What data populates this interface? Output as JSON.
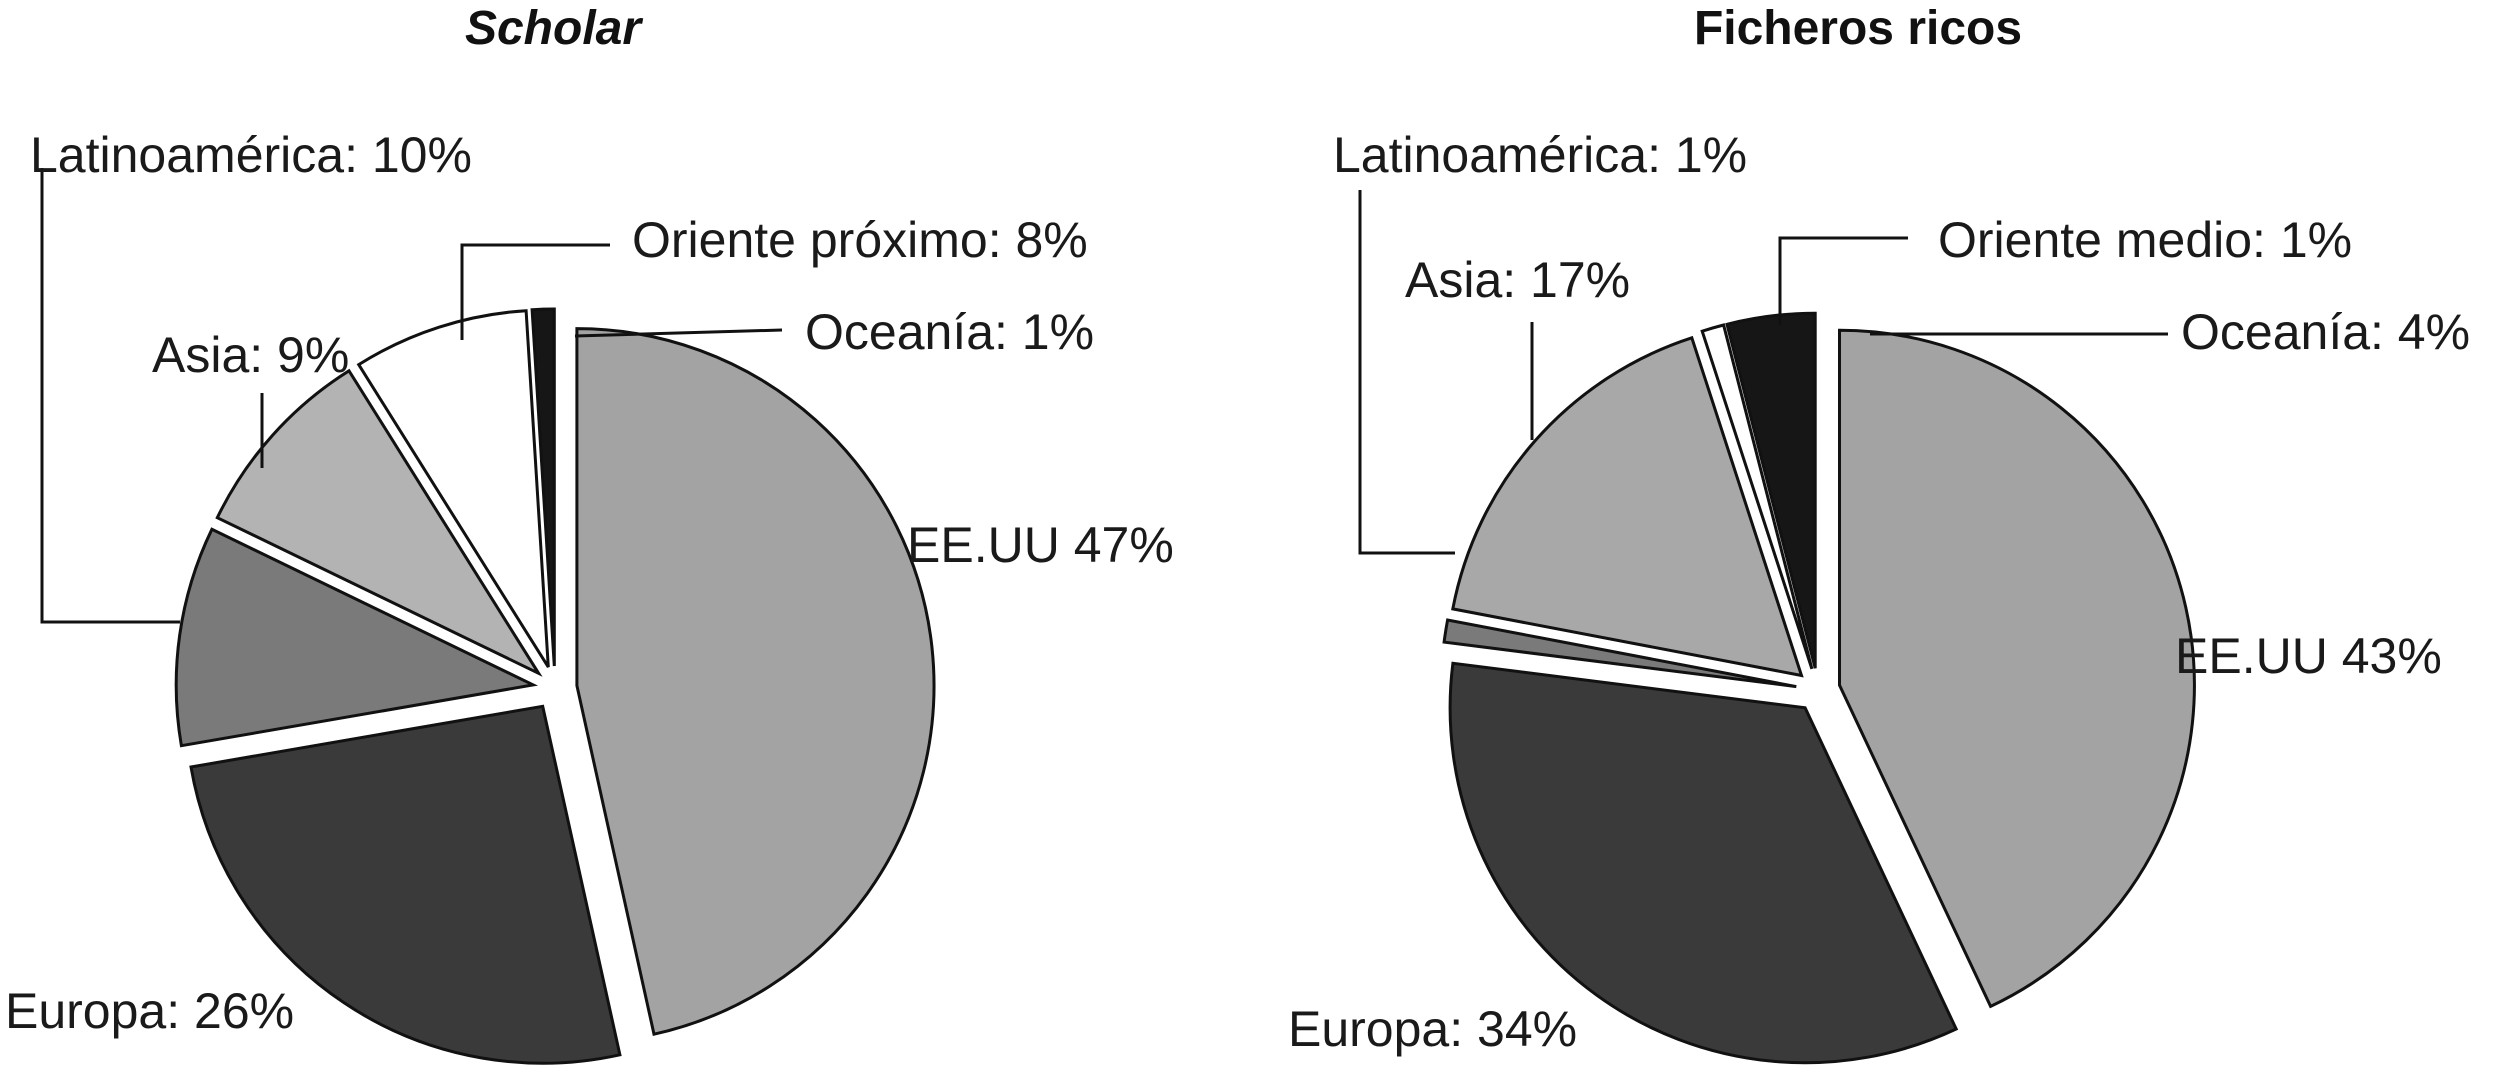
{
  "chart_data": [
    {
      "type": "pie",
      "title": "Scholar",
      "slices": [
        {
          "label": "EE.UU 47%",
          "value": 47,
          "color": "#a3a3a3"
        },
        {
          "label": "Europa: 26%",
          "value": 26,
          "color": "#3a3a3a"
        },
        {
          "label": "Latinoamérica: 10%",
          "value": 10,
          "color": "#7a7a7a"
        },
        {
          "label": "Asia: 9%",
          "value": 9,
          "color": "#b3b3b3"
        },
        {
          "label": "Oriente próximo: 8%",
          "value": 8,
          "color": "#ffffff"
        },
        {
          "label": "Oceanía: 1%",
          "value": 1,
          "color": "#161616"
        }
      ]
    },
    {
      "type": "pie",
      "title": "Ficheros ricos",
      "slices": [
        {
          "label": "EE.UU 43%",
          "value": 43,
          "color": "#a3a3a3"
        },
        {
          "label": "Europa: 34%",
          "value": 34,
          "color": "#3a3a3a"
        },
        {
          "label": "Latinoamérica: 1%",
          "value": 1,
          "color": "#7a7a7a"
        },
        {
          "label": "Asia: 17%",
          "value": 17,
          "color": "#a8a8a8"
        },
        {
          "label": "Oriente medio: 1%",
          "value": 1,
          "color": "#ffffff"
        },
        {
          "label": "Oceanía: 4%",
          "value": 4,
          "color": "#161616"
        }
      ]
    }
  ]
}
